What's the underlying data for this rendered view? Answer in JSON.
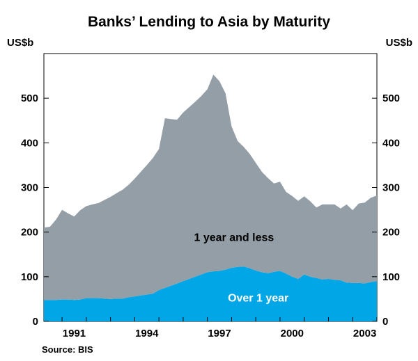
{
  "chart_data": {
    "type": "area",
    "stacked": true,
    "title": "Banks’ Lending to Asia by Maturity",
    "y_unit_left": "US$b",
    "y_unit_right": "US$b",
    "ylim": [
      0,
      600
    ],
    "yticks": [
      0,
      100,
      200,
      300,
      400,
      500
    ],
    "xlim": [
      1989.75,
      2003.5
    ],
    "xticks": [
      1991,
      1994,
      1997,
      2000,
      2003
    ],
    "grid": false,
    "source": "Source: BIS",
    "colors": {
      "over_1_year": "#00a6e6",
      "one_year_and_less": "#949ea6"
    },
    "series": [
      {
        "name": "Over 1 year",
        "x": [
          1989.75,
          1990.0,
          1990.25,
          1990.5,
          1990.75,
          1991.0,
          1991.25,
          1991.5,
          1991.75,
          1992.0,
          1992.25,
          1992.5,
          1992.75,
          1993.0,
          1993.25,
          1993.5,
          1993.75,
          1994.0,
          1994.25,
          1994.5,
          1994.75,
          1995.0,
          1995.25,
          1995.5,
          1995.75,
          1996.0,
          1996.25,
          1996.5,
          1996.75,
          1997.0,
          1997.25,
          1997.5,
          1997.75,
          1998.0,
          1998.25,
          1998.5,
          1998.75,
          1999.0,
          1999.25,
          1999.5,
          1999.75,
          2000.0,
          2000.25,
          2000.5,
          2000.75,
          2001.0,
          2001.25,
          2001.5,
          2001.75,
          2002.0,
          2002.25,
          2002.5,
          2002.75,
          2003.0,
          2003.25,
          2003.5
        ],
        "values": [
          48,
          48,
          48,
          49,
          49,
          48,
          49,
          52,
          52,
          52,
          51,
          50,
          51,
          51,
          54,
          56,
          58,
          60,
          62,
          70,
          75,
          80,
          85,
          90,
          95,
          100,
          105,
          110,
          112,
          113,
          116,
          120,
          122,
          123,
          119,
          114,
          110,
          108,
          111,
          113,
          107,
          100,
          95,
          105,
          100,
          97,
          94,
          95,
          93,
          92,
          87,
          86,
          86,
          85,
          88,
          90
        ]
      },
      {
        "name": "1 year and less",
        "x": [
          1989.75,
          1990.0,
          1990.25,
          1990.5,
          1990.75,
          1991.0,
          1991.25,
          1991.5,
          1991.75,
          1992.0,
          1992.25,
          1992.5,
          1992.75,
          1993.0,
          1993.25,
          1993.5,
          1993.75,
          1994.0,
          1994.25,
          1994.5,
          1994.75,
          1995.0,
          1995.25,
          1995.5,
          1995.75,
          1996.0,
          1996.25,
          1996.5,
          1996.75,
          1997.0,
          1997.25,
          1997.5,
          1997.75,
          1998.0,
          1998.25,
          1998.5,
          1998.75,
          1999.0,
          1999.25,
          1999.5,
          1999.75,
          2000.0,
          2000.25,
          2000.5,
          2000.75,
          2001.0,
          2001.25,
          2001.5,
          2001.75,
          2002.0,
          2002.25,
          2002.5,
          2002.75,
          2003.0,
          2003.25,
          2003.5
        ],
        "values": [
          162,
          164,
          180,
          201,
          193,
          187,
          200,
          206,
          210,
          213,
          221,
          229,
          236,
          244,
          252,
          264,
          277,
          290,
          304,
          316,
          380,
          373,
          367,
          378,
          385,
          392,
          400,
          410,
          441,
          425,
          395,
          317,
          282,
          268,
          256,
          241,
          225,
          213,
          198,
          200,
          183,
          181,
          175,
          175,
          169,
          158,
          168,
          167,
          169,
          161,
          175,
          163,
          178,
          181,
          189,
          192
        ]
      }
    ],
    "annotations": [
      {
        "text": "1 year and less",
        "x": 1997.6,
        "y": 188
      },
      {
        "text": "Over 1 year",
        "x": 1998.6,
        "y": 52
      }
    ]
  }
}
